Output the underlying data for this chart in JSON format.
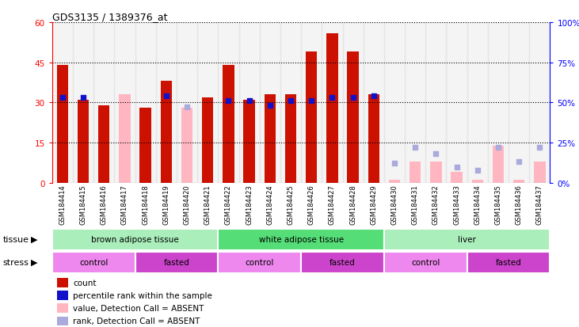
{
  "title": "GDS3135 / 1389376_at",
  "samples": [
    "GSM184414",
    "GSM184415",
    "GSM184416",
    "GSM184417",
    "GSM184418",
    "GSM184419",
    "GSM184420",
    "GSM184421",
    "GSM184422",
    "GSM184423",
    "GSM184424",
    "GSM184425",
    "GSM184426",
    "GSM184427",
    "GSM184428",
    "GSM184429",
    "GSM184430",
    "GSM184431",
    "GSM184432",
    "GSM184433",
    "GSM184434",
    "GSM184435",
    "GSM184436",
    "GSM184437"
  ],
  "count_present": [
    44,
    31,
    29,
    null,
    28,
    38,
    null,
    32,
    44,
    31,
    33,
    33,
    49,
    56,
    49,
    33,
    null,
    null,
    null,
    null,
    null,
    null,
    null,
    null
  ],
  "rank_present": [
    53,
    53,
    null,
    null,
    null,
    54,
    null,
    null,
    51,
    51,
    48,
    51,
    51,
    53,
    53,
    54,
    null,
    null,
    null,
    null,
    null,
    null,
    null,
    null
  ],
  "count_absent": [
    null,
    null,
    null,
    33,
    null,
    null,
    28,
    null,
    null,
    null,
    null,
    null,
    null,
    null,
    null,
    null,
    1,
    8,
    8,
    4,
    1,
    14,
    1,
    8
  ],
  "rank_absent": [
    null,
    null,
    null,
    null,
    null,
    null,
    47,
    null,
    null,
    null,
    null,
    null,
    null,
    null,
    null,
    null,
    12,
    22,
    18,
    10,
    8,
    22,
    13,
    22
  ],
  "ylim_left": [
    0,
    60
  ],
  "ylim_right": [
    0,
    100
  ],
  "yticks_left": [
    0,
    15,
    30,
    45,
    60
  ],
  "yticks_right": [
    0,
    25,
    50,
    75,
    100
  ],
  "bar_color_red": "#CC1100",
  "bar_color_pink": "#FFB6C1",
  "dot_color_blue": "#1111CC",
  "dot_color_lightblue": "#AAAADD",
  "tissue_groups": [
    {
      "label": "brown adipose tissue",
      "start": 0,
      "end": 8
    },
    {
      "label": "white adipose tissue",
      "start": 8,
      "end": 16
    },
    {
      "label": "liver",
      "start": 16,
      "end": 24
    }
  ],
  "tissue_colors_alt": [
    "#AAEEBB",
    "#66DD88"
  ],
  "stress_groups": [
    {
      "label": "control",
      "start": 0,
      "end": 4,
      "color": "#EE88EE"
    },
    {
      "label": "fasted",
      "start": 4,
      "end": 8,
      "color": "#CC44CC"
    },
    {
      "label": "control",
      "start": 8,
      "end": 12,
      "color": "#EE88EE"
    },
    {
      "label": "fasted",
      "start": 12,
      "end": 16,
      "color": "#CC44CC"
    },
    {
      "label": "control",
      "start": 16,
      "end": 20,
      "color": "#EE88EE"
    },
    {
      "label": "fasted",
      "start": 20,
      "end": 24,
      "color": "#CC44CC"
    }
  ],
  "xlabel_bg": "#C8C8C8",
  "legend_items": [
    {
      "color": "#CC1100",
      "label": "count"
    },
    {
      "color": "#1111CC",
      "label": "percentile rank within the sample"
    },
    {
      "color": "#FFB6C1",
      "label": "value, Detection Call = ABSENT"
    },
    {
      "color": "#AAAADD",
      "label": "rank, Detection Call = ABSENT"
    }
  ]
}
